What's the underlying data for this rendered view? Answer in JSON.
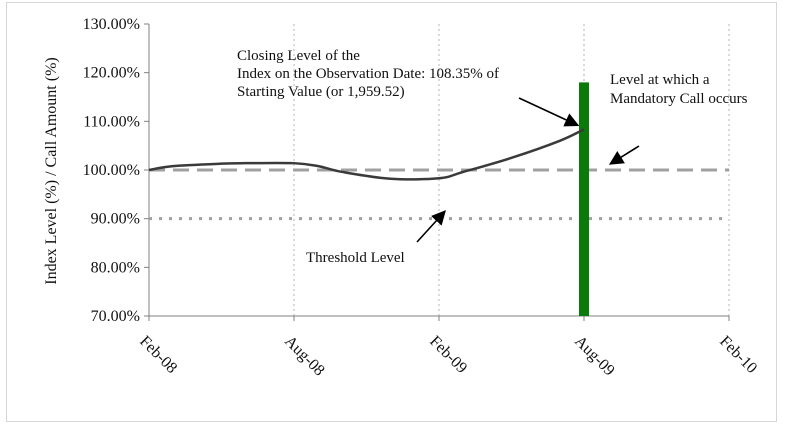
{
  "chart_data": {
    "type": "line",
    "title": "",
    "xlabel": "",
    "ylabel": "Index Level (%) / Call Amount (%)",
    "y_unit": "%",
    "ylim": [
      70,
      130
    ],
    "y_ticks": [
      70,
      80,
      90,
      100,
      110,
      120,
      130
    ],
    "y_tick_labels": [
      "70.00%",
      "80.00%",
      "90.00%",
      "100.00%",
      "110.00%",
      "120.00%",
      "130.00%"
    ],
    "xlim": [
      "2008-02",
      "2010-02"
    ],
    "x_ticks": [
      "2008-02",
      "2008-08",
      "2009-02",
      "2009-08",
      "2010-02"
    ],
    "x_tick_labels": [
      "Feb-08",
      "Aug-08",
      "Feb-09",
      "Aug-09",
      "Feb-10"
    ],
    "grid": {
      "x": true,
      "y": false
    },
    "legend": "none",
    "series": [
      {
        "kind": "line",
        "color": "#3a3a3a",
        "points": [
          {
            "x": "2008-02",
            "y": 100.0
          },
          {
            "x": "2008-03",
            "y": 100.8
          },
          {
            "x": "2008-05",
            "y": 101.3
          },
          {
            "x": "2008-06",
            "y": 101.4
          },
          {
            "x": "2008-08",
            "y": 101.4
          },
          {
            "x": "2008-09",
            "y": 100.8
          },
          {
            "x": "2008-10",
            "y": 99.6
          },
          {
            "x": "2008-12",
            "y": 98.2
          },
          {
            "x": "2009-02",
            "y": 98.3
          },
          {
            "x": "2009-03",
            "y": 99.6
          },
          {
            "x": "2009-05",
            "y": 102.5
          },
          {
            "x": "2009-07",
            "y": 106.0
          },
          {
            "x": "2009-08",
            "y": 108.35
          }
        ]
      },
      {
        "kind": "hline",
        "style": "dashed",
        "color": "#a0a0a0",
        "y": 100
      },
      {
        "kind": "hline",
        "style": "dotted",
        "color": "#a0a0a0",
        "y": 90
      },
      {
        "kind": "bar",
        "color": "#0a7a0a",
        "x": "2009-08",
        "y": 118
      }
    ],
    "annotations": [
      {
        "lines": [
          "Closing Level of the",
          "Index on the Observation Date: 108.35% of",
          "Starting Value (or 1,959.52)"
        ],
        "arrow_to": {
          "x": "2009-08",
          "y": 108.35
        }
      },
      {
        "lines": [
          "Level at which a",
          "Mandatory Call occurs"
        ],
        "arrow_to": {
          "x": "2009-09",
          "y": 100
        }
      },
      {
        "lines": [
          "Threshold Level"
        ],
        "arrow_to": {
          "x": "2009-02",
          "y": 90.5
        }
      }
    ]
  }
}
